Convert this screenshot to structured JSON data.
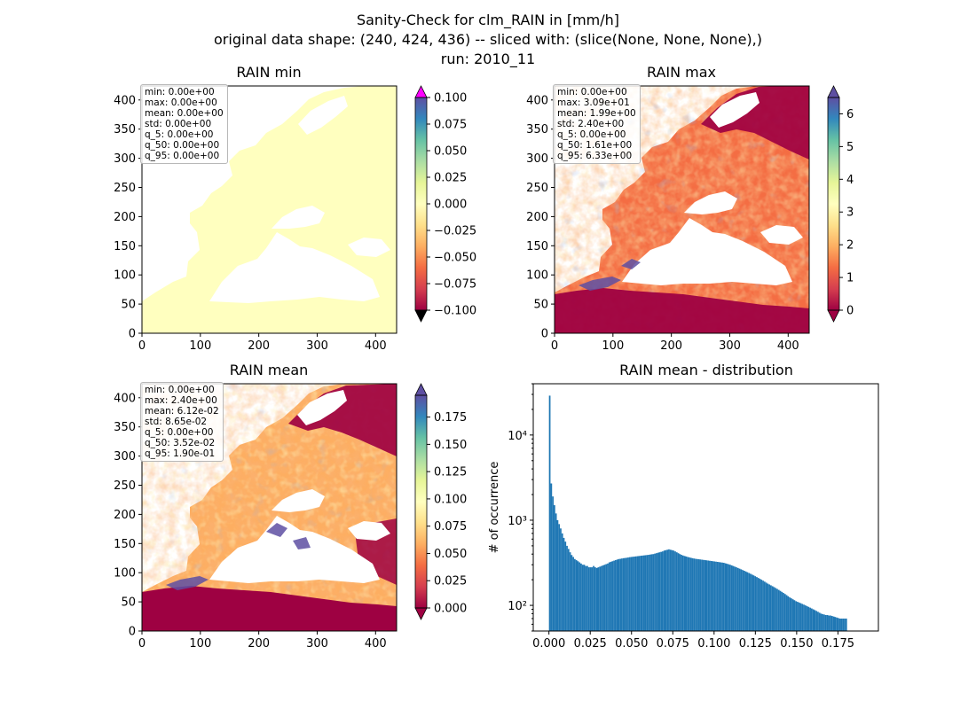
{
  "figure": {
    "title_lines": [
      "Sanity-Check for clm_RAIN in [mm/h]",
      "original data shape: (240, 424, 436) -- sliced with: (slice(None, None, None),)",
      "run: 2010_11"
    ]
  },
  "chart_data": [
    {
      "id": "rain_min",
      "type": "heatmap",
      "title": "RAIN min",
      "xlim": [
        0,
        436
      ],
      "ylim": [
        0,
        424
      ],
      "xticks": [
        0,
        100,
        200,
        300,
        400
      ],
      "yticks": [
        0,
        50,
        100,
        150,
        200,
        250,
        300,
        350,
        400
      ],
      "colorbar": {
        "min": -0.1,
        "max": 0.1,
        "extend": "both",
        "ticks": [
          "0.100",
          "0.075",
          "0.050",
          "0.025",
          "0.000",
          "−0.025",
          "−0.050",
          "−0.075",
          "−0.100"
        ],
        "tick_values": [
          0.1,
          0.075,
          0.05,
          0.025,
          0,
          -0.025,
          -0.05,
          -0.075,
          -0.1
        ]
      },
      "stats": [
        "min: 0.00e+00",
        "max: 0.00e+00",
        "mean: 0.00e+00",
        "std: 0.00e+00",
        "q_5: 0.00e+00",
        "q_50: 0.00e+00",
        "q_95: 0.00e+00"
      ]
    },
    {
      "id": "rain_max",
      "type": "heatmap",
      "title": "RAIN max",
      "xlim": [
        0,
        436
      ],
      "ylim": [
        0,
        424
      ],
      "xticks": [
        0,
        100,
        200,
        300,
        400
      ],
      "yticks": [
        0,
        50,
        100,
        150,
        200,
        250,
        300,
        350,
        400
      ],
      "colorbar": {
        "min": 0,
        "max": 6.5,
        "extend": "both",
        "ticks": [
          "6",
          "5",
          "4",
          "3",
          "2",
          "1",
          "0"
        ],
        "tick_values": [
          6,
          5,
          4,
          3,
          2,
          1,
          0
        ]
      },
      "stats": [
        "min: 0.00e+00",
        "max: 3.09e+01",
        "mean: 1.99e+00",
        "std: 2.40e+00",
        "q_5: 0.00e+00",
        "q_50: 1.61e+00",
        "q_95: 6.33e+00"
      ]
    },
    {
      "id": "rain_mean",
      "type": "heatmap",
      "title": "RAIN mean",
      "xlim": [
        0,
        436
      ],
      "ylim": [
        0,
        424
      ],
      "xticks": [
        0,
        100,
        200,
        300,
        400
      ],
      "yticks": [
        0,
        50,
        100,
        150,
        200,
        250,
        300,
        350,
        400
      ],
      "colorbar": {
        "min": 0,
        "max": 0.195,
        "extend": "both",
        "ticks": [
          "0.175",
          "0.150",
          "0.125",
          "0.100",
          "0.075",
          "0.050",
          "0.025",
          "0.000"
        ],
        "tick_values": [
          0.175,
          0.15,
          0.125,
          0.1,
          0.075,
          0.05,
          0.025,
          0
        ]
      },
      "stats": [
        "min: 0.00e+00",
        "max: 2.40e+00",
        "mean: 6.12e-02",
        "std: 8.65e-02",
        "q_5: 0.00e+00",
        "q_50: 3.52e-02",
        "q_95: 1.90e-01"
      ]
    },
    {
      "id": "rain_mean_dist",
      "type": "bar",
      "title": "RAIN mean - distribution",
      "xlabel": "",
      "ylabel": "# of occurrence",
      "yscale": "log",
      "xlim": [
        -0.0095,
        0.1995
      ],
      "ylim": [
        50,
        40000
      ],
      "xticks": [
        "0.000",
        "0.025",
        "0.050",
        "0.075",
        "0.100",
        "0.125",
        "0.150",
        "0.175"
      ],
      "xtick_values": [
        0,
        0.025,
        0.05,
        0.075,
        0.1,
        0.125,
        0.15,
        0.175
      ],
      "ytick_labels": [
        "10²",
        "10³",
        "10⁴"
      ],
      "ytick_values": [
        100,
        1000,
        10000
      ],
      "bin_start": 0.0,
      "bin_width": 0.00095,
      "values": [
        29000,
        2700,
        1900,
        1500,
        1200,
        1000,
        900,
        800,
        700,
        620,
        560,
        500,
        460,
        420,
        390,
        370,
        350,
        340,
        330,
        320,
        310,
        300,
        300,
        290,
        290,
        280,
        280,
        280,
        290,
        280,
        275,
        280,
        285,
        290,
        295,
        300,
        305,
        310,
        320,
        325,
        330,
        335,
        340,
        345,
        350,
        352,
        355,
        358,
        360,
        362,
        365,
        368,
        370,
        372,
        374,
        376,
        378,
        380,
        382,
        384,
        386,
        388,
        390,
        392,
        395,
        398,
        400,
        405,
        410,
        415,
        420,
        425,
        430,
        440,
        445,
        450,
        455,
        450,
        445,
        440,
        430,
        420,
        410,
        400,
        392,
        385,
        380,
        375,
        370,
        366,
        362,
        358,
        355,
        352,
        350,
        348,
        346,
        344,
        342,
        340,
        338,
        336,
        334,
        332,
        330,
        328,
        326,
        324,
        322,
        320,
        318,
        316,
        312,
        308,
        304,
        300,
        295,
        290,
        285,
        280,
        275,
        270,
        265,
        260,
        255,
        250,
        245,
        240,
        235,
        230,
        225,
        220,
        215,
        210,
        205,
        200,
        195,
        190,
        185,
        180,
        176,
        172,
        168,
        164,
        160,
        156,
        152,
        148,
        144,
        140,
        136,
        132,
        128,
        124,
        121,
        118,
        115,
        112,
        110,
        108,
        106,
        104,
        102,
        100,
        98,
        96,
        94,
        92,
        90,
        88,
        86,
        84,
        82,
        80,
        79,
        78,
        77,
        77,
        76,
        76,
        75,
        74,
        73,
        72,
        71,
        70,
        70,
        70,
        70,
        70
      ]
    }
  ]
}
